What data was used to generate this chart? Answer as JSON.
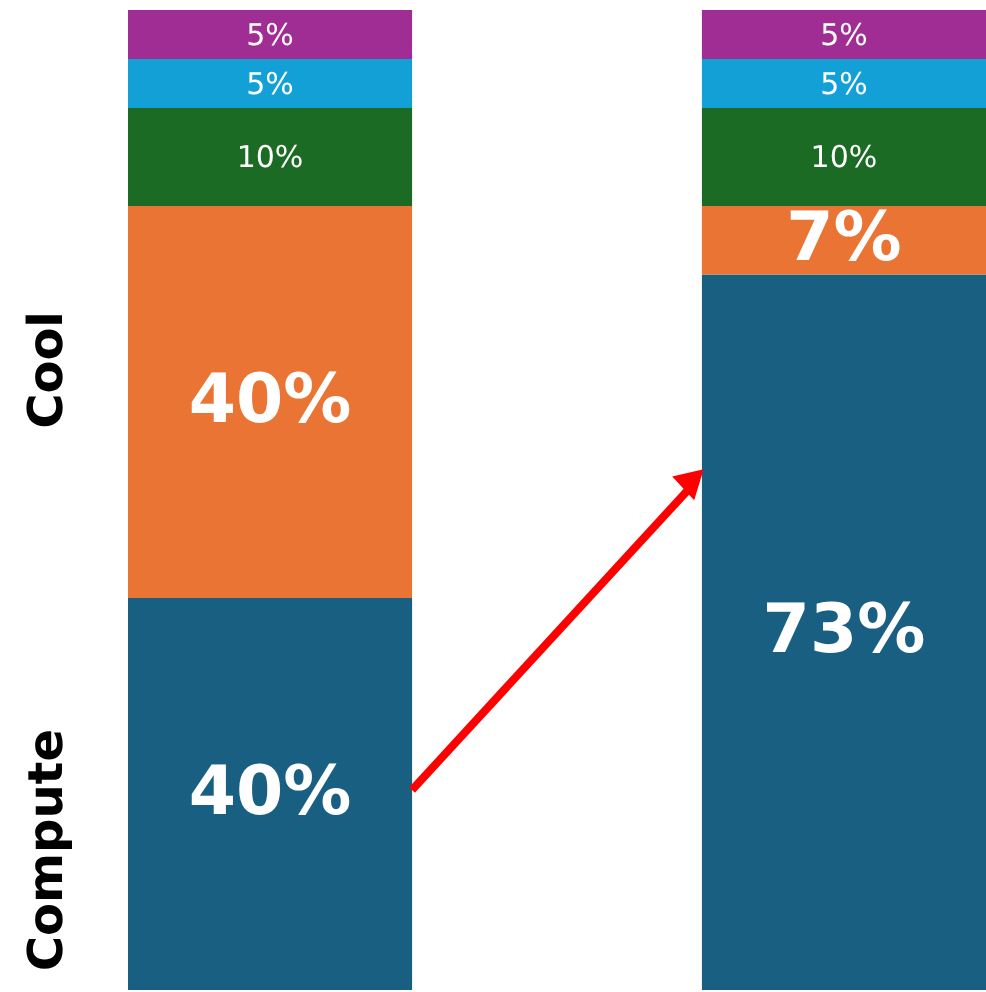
{
  "chart_data": {
    "type": "bar",
    "stacked": true,
    "categories": [
      null,
      null
    ],
    "series": [
      {
        "color": "#185f82",
        "values": [
          40,
          73
        ],
        "value_labels": [
          "40%",
          "73%"
        ]
      },
      {
        "color": "#e97434",
        "values": [
          40,
          7
        ],
        "value_labels": [
          "40%",
          "7%"
        ]
      },
      {
        "color": "#1c6b25",
        "values": [
          10,
          10
        ],
        "value_labels": [
          "10%",
          "10%"
        ]
      },
      {
        "color": "#12a0d7",
        "values": [
          5,
          5
        ],
        "value_labels": [
          "5%",
          "5%"
        ]
      },
      {
        "color": "#a02d93",
        "values": [
          5,
          5
        ],
        "value_labels": [
          "5%",
          "5%"
        ]
      }
    ],
    "ylim": [
      0,
      100
    ],
    "annotations": [
      "Compute",
      "Cool"
    ]
  }
}
